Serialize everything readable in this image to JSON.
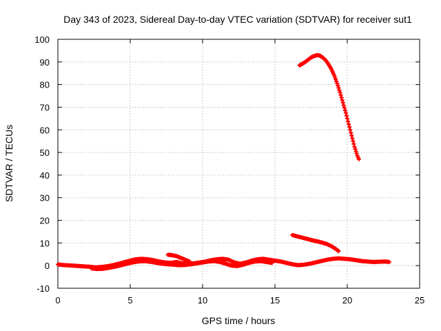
{
  "chart_data": {
    "type": "scatter",
    "title": "Day 343 of 2023, Sidereal Day-to-day VTEC variation (SDTVAR) for receiver sut1",
    "xlabel": "GPS time / hours",
    "ylabel": "SDTVAR / TECUs",
    "xlim": [
      0,
      25
    ],
    "ylim": [
      -10,
      100
    ],
    "xticks": [
      0,
      5,
      10,
      15,
      20,
      25
    ],
    "yticks": [
      -10,
      0,
      10,
      20,
      30,
      40,
      50,
      60,
      70,
      80,
      90,
      100
    ],
    "grid": true,
    "legend": "none",
    "marker_color": "#ff0000",
    "series": [
      {
        "name": "sdtvar-baseline",
        "x": [
          0,
          0.3,
          2.2,
          2.6,
          3.0,
          3.4,
          3.8,
          4.2,
          4.6,
          5.0,
          5.4,
          5.8,
          6.2,
          6.6,
          7.0,
          7.4,
          7.8,
          8.2,
          8.6,
          9.0,
          9.4,
          9.8,
          10.2,
          10.6,
          11.0,
          11.4,
          11.8,
          12.2,
          12.6,
          13.0,
          13.4,
          13.8,
          14.2,
          14.6,
          15.0,
          15.4,
          15.8,
          16.2,
          16.6,
          17.0,
          17.4,
          17.8,
          18.2,
          18.6,
          19.0,
          19.4,
          19.8,
          20.2,
          20.6,
          21.0,
          21.4,
          21.8,
          22.2,
          22.6,
          22.9
        ],
        "y": [
          0.5,
          0.3,
          -0.5,
          -0.8,
          -0.6,
          -0.3,
          0.2,
          0.8,
          1.5,
          2.2,
          2.8,
          3.0,
          2.8,
          2.4,
          1.8,
          1.4,
          1.2,
          1.6,
          1.0,
          0.8,
          1.0,
          1.4,
          1.8,
          2.4,
          2.8,
          3.0,
          2.6,
          1.4,
          0.8,
          1.4,
          2.2,
          2.8,
          3.0,
          2.6,
          2.2,
          1.8,
          1.2,
          0.6,
          0.2,
          0.4,
          0.8,
          1.4,
          2.0,
          2.6,
          3.0,
          3.2,
          3.0,
          2.8,
          2.4,
          2.0,
          1.8,
          1.6,
          1.7,
          1.8,
          1.6
        ]
      },
      {
        "name": "sdtvar-secondary-low",
        "x": [
          2.3,
          2.7,
          3.1,
          3.5,
          4.0,
          4.5,
          5.0,
          5.5,
          6.0,
          6.5,
          7.0,
          7.6,
          8.0,
          8.4,
          8.8,
          9.2,
          9.6,
          10.0,
          10.4,
          10.8,
          11.2,
          11.6,
          12.0,
          12.4,
          12.8,
          13.2,
          13.6,
          14.0,
          14.4,
          14.8
        ],
        "y": [
          -1.2,
          -1.5,
          -1.4,
          -1.0,
          -0.4,
          0.4,
          1.2,
          1.8,
          2.0,
          1.6,
          1.0,
          0.6,
          0.4,
          0.2,
          0.3,
          0.6,
          1.0,
          1.4,
          1.8,
          2.0,
          1.6,
          0.8,
          0.0,
          -0.2,
          0.4,
          1.2,
          1.8,
          2.0,
          1.6,
          1.2
        ]
      },
      {
        "name": "sdtvar-bump-7-9",
        "x": [
          7.6,
          7.9,
          8.2,
          8.5,
          8.8,
          9.1
        ],
        "y": [
          4.8,
          4.6,
          4.2,
          3.4,
          2.6,
          1.8
        ]
      },
      {
        "name": "sdtvar-arc-16-19",
        "x": [
          16.2,
          16.5,
          16.8,
          17.1,
          17.4,
          17.7,
          18.0,
          18.3,
          18.6,
          18.9,
          19.2,
          19.4
        ],
        "y": [
          13.5,
          13.0,
          12.5,
          12.0,
          11.5,
          11.0,
          10.6,
          10.1,
          9.5,
          8.6,
          7.4,
          6.4
        ]
      },
      {
        "name": "sdtvar-high-arc",
        "x": [
          16.7,
          16.9,
          17.1,
          17.3,
          17.5,
          17.7,
          17.9,
          18.1,
          18.3,
          18.5,
          18.7,
          18.9,
          19.1,
          19.3,
          19.5,
          19.7,
          19.9,
          20.1,
          20.3,
          20.5,
          20.7,
          20.8
        ],
        "y": [
          88.5,
          89.2,
          90.0,
          91.0,
          92.0,
          92.6,
          93.0,
          92.8,
          92.0,
          90.8,
          89.0,
          86.8,
          84.0,
          80.5,
          76.5,
          72.0,
          67.5,
          62.5,
          57.5,
          52.5,
          48.5,
          47.0
        ]
      }
    ]
  }
}
